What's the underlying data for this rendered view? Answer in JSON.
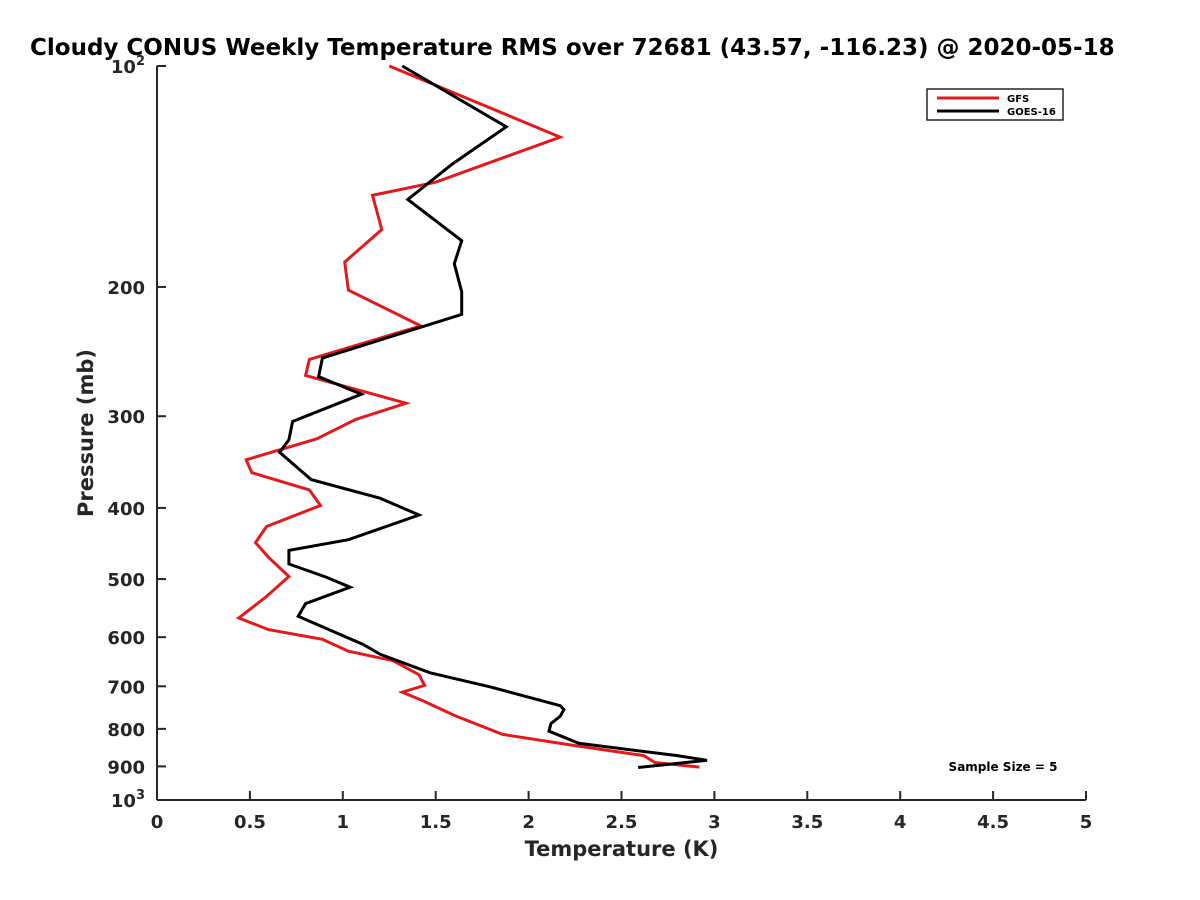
{
  "chart_data": {
    "type": "line",
    "title": "Cloudy CONUS Weekly Temperature RMS over 72681 (43.57, -116.23) @ 2020-05-18",
    "xlabel": "Temperature (K)",
    "ylabel": "Pressure (mb)",
    "xlim": [
      0,
      5
    ],
    "ylim": [
      100,
      1000
    ],
    "y_scale": "log",
    "y_reversed": true,
    "x_ticks": [
      "0",
      "0.5",
      "1",
      "1.5",
      "2",
      "2.5",
      "3",
      "3.5",
      "4",
      "4.5",
      "5"
    ],
    "y_ticks": [
      {
        "value": 100,
        "base": "10",
        "exp": "2"
      },
      {
        "value": 200,
        "label": "200"
      },
      {
        "value": 300,
        "label": "300"
      },
      {
        "value": 400,
        "label": "400"
      },
      {
        "value": 500,
        "label": "500"
      },
      {
        "value": 600,
        "label": "600"
      },
      {
        "value": 700,
        "label": "700"
      },
      {
        "value": 800,
        "label": "800"
      },
      {
        "value": 900,
        "label": "900"
      },
      {
        "value": 1000,
        "base": "10",
        "exp": "3"
      }
    ],
    "grid": false,
    "legend_position": "top-right",
    "series": [
      {
        "name": "GFS",
        "color": "#e31a1c",
        "points": [
          [
            1.25,
            100
          ],
          [
            2.17,
            125
          ],
          [
            1.5,
            144
          ],
          [
            1.16,
            150
          ],
          [
            1.21,
            167
          ],
          [
            1.01,
            185
          ],
          [
            1.03,
            202
          ],
          [
            1.42,
            226
          ],
          [
            0.82,
            251
          ],
          [
            0.8,
            264
          ],
          [
            1.34,
            288
          ],
          [
            1.07,
            303
          ],
          [
            0.86,
            322
          ],
          [
            0.48,
            344
          ],
          [
            0.51,
            358
          ],
          [
            0.82,
            378
          ],
          [
            0.88,
            397
          ],
          [
            0.59,
            424
          ],
          [
            0.53,
            446
          ],
          [
            0.6,
            467
          ],
          [
            0.71,
            496
          ],
          [
            0.59,
            528
          ],
          [
            0.44,
            565
          ],
          [
            0.6,
            586
          ],
          [
            0.89,
            604
          ],
          [
            1.03,
            627
          ],
          [
            1.27,
            646
          ],
          [
            1.41,
            675
          ],
          [
            1.44,
            698
          ],
          [
            1.32,
            713
          ],
          [
            1.43,
            732
          ],
          [
            1.6,
            767
          ],
          [
            1.86,
            814
          ],
          [
            2.25,
            843
          ],
          [
            2.62,
            870
          ],
          [
            2.68,
            889
          ],
          [
            2.92,
            902
          ]
        ]
      },
      {
        "name": "GOES-16",
        "color": "#000000",
        "points": [
          [
            1.32,
            100
          ],
          [
            1.88,
            121
          ],
          [
            1.59,
            136
          ],
          [
            1.35,
            152
          ],
          [
            1.64,
            173
          ],
          [
            1.6,
            186
          ],
          [
            1.64,
            203
          ],
          [
            1.64,
            218
          ],
          [
            0.89,
            250
          ],
          [
            0.87,
            265
          ],
          [
            1.1,
            280
          ],
          [
            0.73,
            305
          ],
          [
            0.71,
            323
          ],
          [
            0.66,
            336
          ],
          [
            0.83,
            366
          ],
          [
            1.2,
            388
          ],
          [
            1.41,
            409
          ],
          [
            1.03,
            442
          ],
          [
            0.71,
            457
          ],
          [
            0.71,
            477
          ],
          [
            0.91,
            497
          ],
          [
            1.04,
            513
          ],
          [
            0.8,
            540
          ],
          [
            0.76,
            562
          ],
          [
            1.11,
            614
          ],
          [
            1.2,
            633
          ],
          [
            1.47,
            671
          ],
          [
            1.8,
            702
          ],
          [
            2.17,
            744
          ],
          [
            2.19,
            753
          ],
          [
            2.17,
            769
          ],
          [
            2.12,
            787
          ],
          [
            2.11,
            806
          ],
          [
            2.27,
            837
          ],
          [
            2.8,
            870
          ],
          [
            2.96,
            883
          ],
          [
            2.59,
            903
          ]
        ]
      }
    ],
    "annotation": "Sample Size = 5"
  }
}
